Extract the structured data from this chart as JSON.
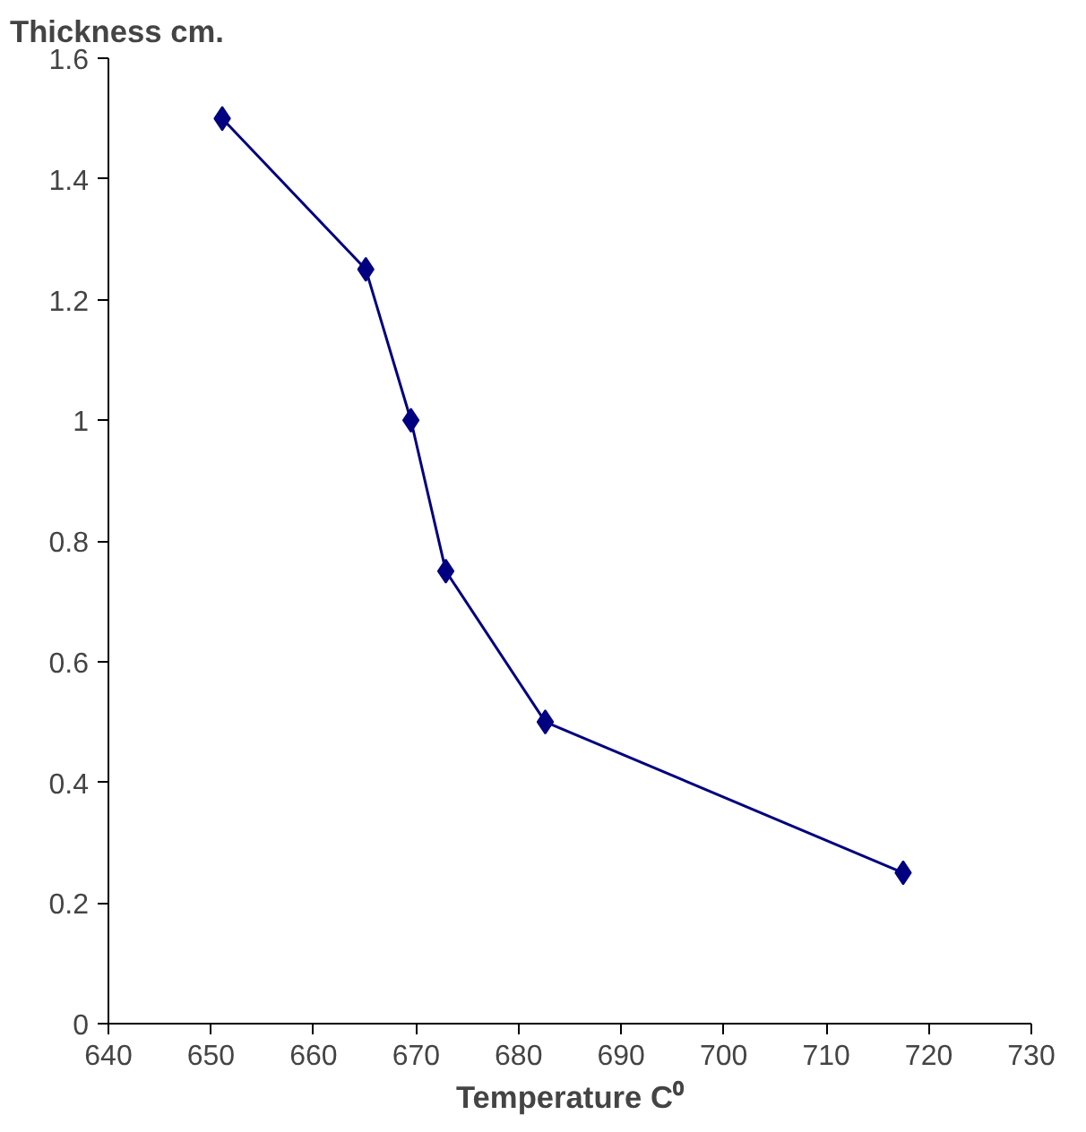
{
  "chart_data": {
    "type": "line",
    "ylabel": "Thickness cm.",
    "xlabel": "Temperature C⁰",
    "x": [
      651.1,
      665.1,
      669.5,
      672.9,
      682.6,
      717.5
    ],
    "series": [
      {
        "color": "#000080",
        "values": [
          1.5,
          1.25,
          1.0,
          0.75,
          0.5,
          0.25
        ]
      }
    ],
    "xlim": [
      640,
      730
    ],
    "xticks": [
      640,
      650,
      660,
      670,
      680,
      690,
      700,
      710,
      720,
      730
    ],
    "ylim": [
      0,
      1.6
    ],
    "yticks": [
      0,
      0.2,
      0.4,
      0.6,
      0.8,
      1,
      1.2,
      1.4,
      1.6
    ],
    "grid": false,
    "marker": "diamond",
    "line_style": "solid"
  }
}
